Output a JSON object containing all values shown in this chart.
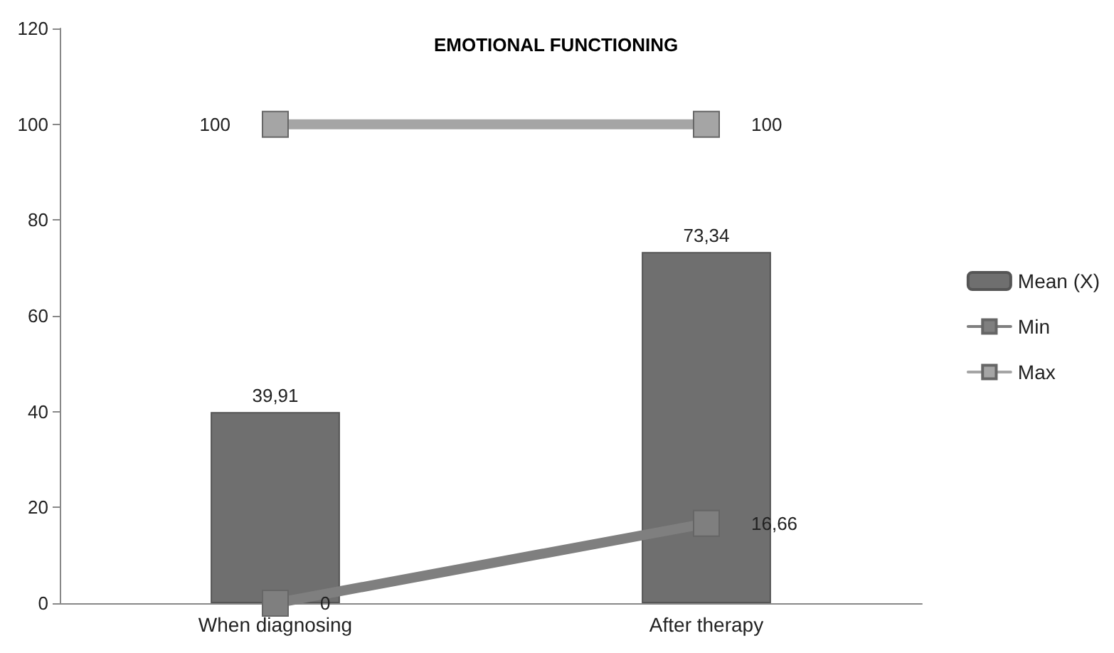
{
  "chart_data": {
    "type": "bar",
    "title": "EMOTIONAL FUNCTIONING",
    "categories": [
      "When diagnosing",
      "After therapy"
    ],
    "series": [
      {
        "name": "Mean (X)",
        "color": "#6f6f6f",
        "values": [
          39.91,
          73.34
        ],
        "value_labels": [
          "39,91",
          "73,34"
        ]
      },
      {
        "name": "Min",
        "type": "line",
        "color": "#7f7f7f",
        "values": [
          0,
          16.66
        ],
        "value_labels": [
          "0",
          "16,66"
        ]
      },
      {
        "name": "Max",
        "type": "line",
        "color": "#a5a5a5",
        "values": [
          100,
          100
        ],
        "value_labels": [
          "100",
          "100"
        ]
      }
    ],
    "ylim": [
      0,
      120
    ],
    "yticks": [
      0,
      20,
      40,
      60,
      80,
      100,
      120
    ],
    "grid": false,
    "legend": "right",
    "marker": "square"
  }
}
